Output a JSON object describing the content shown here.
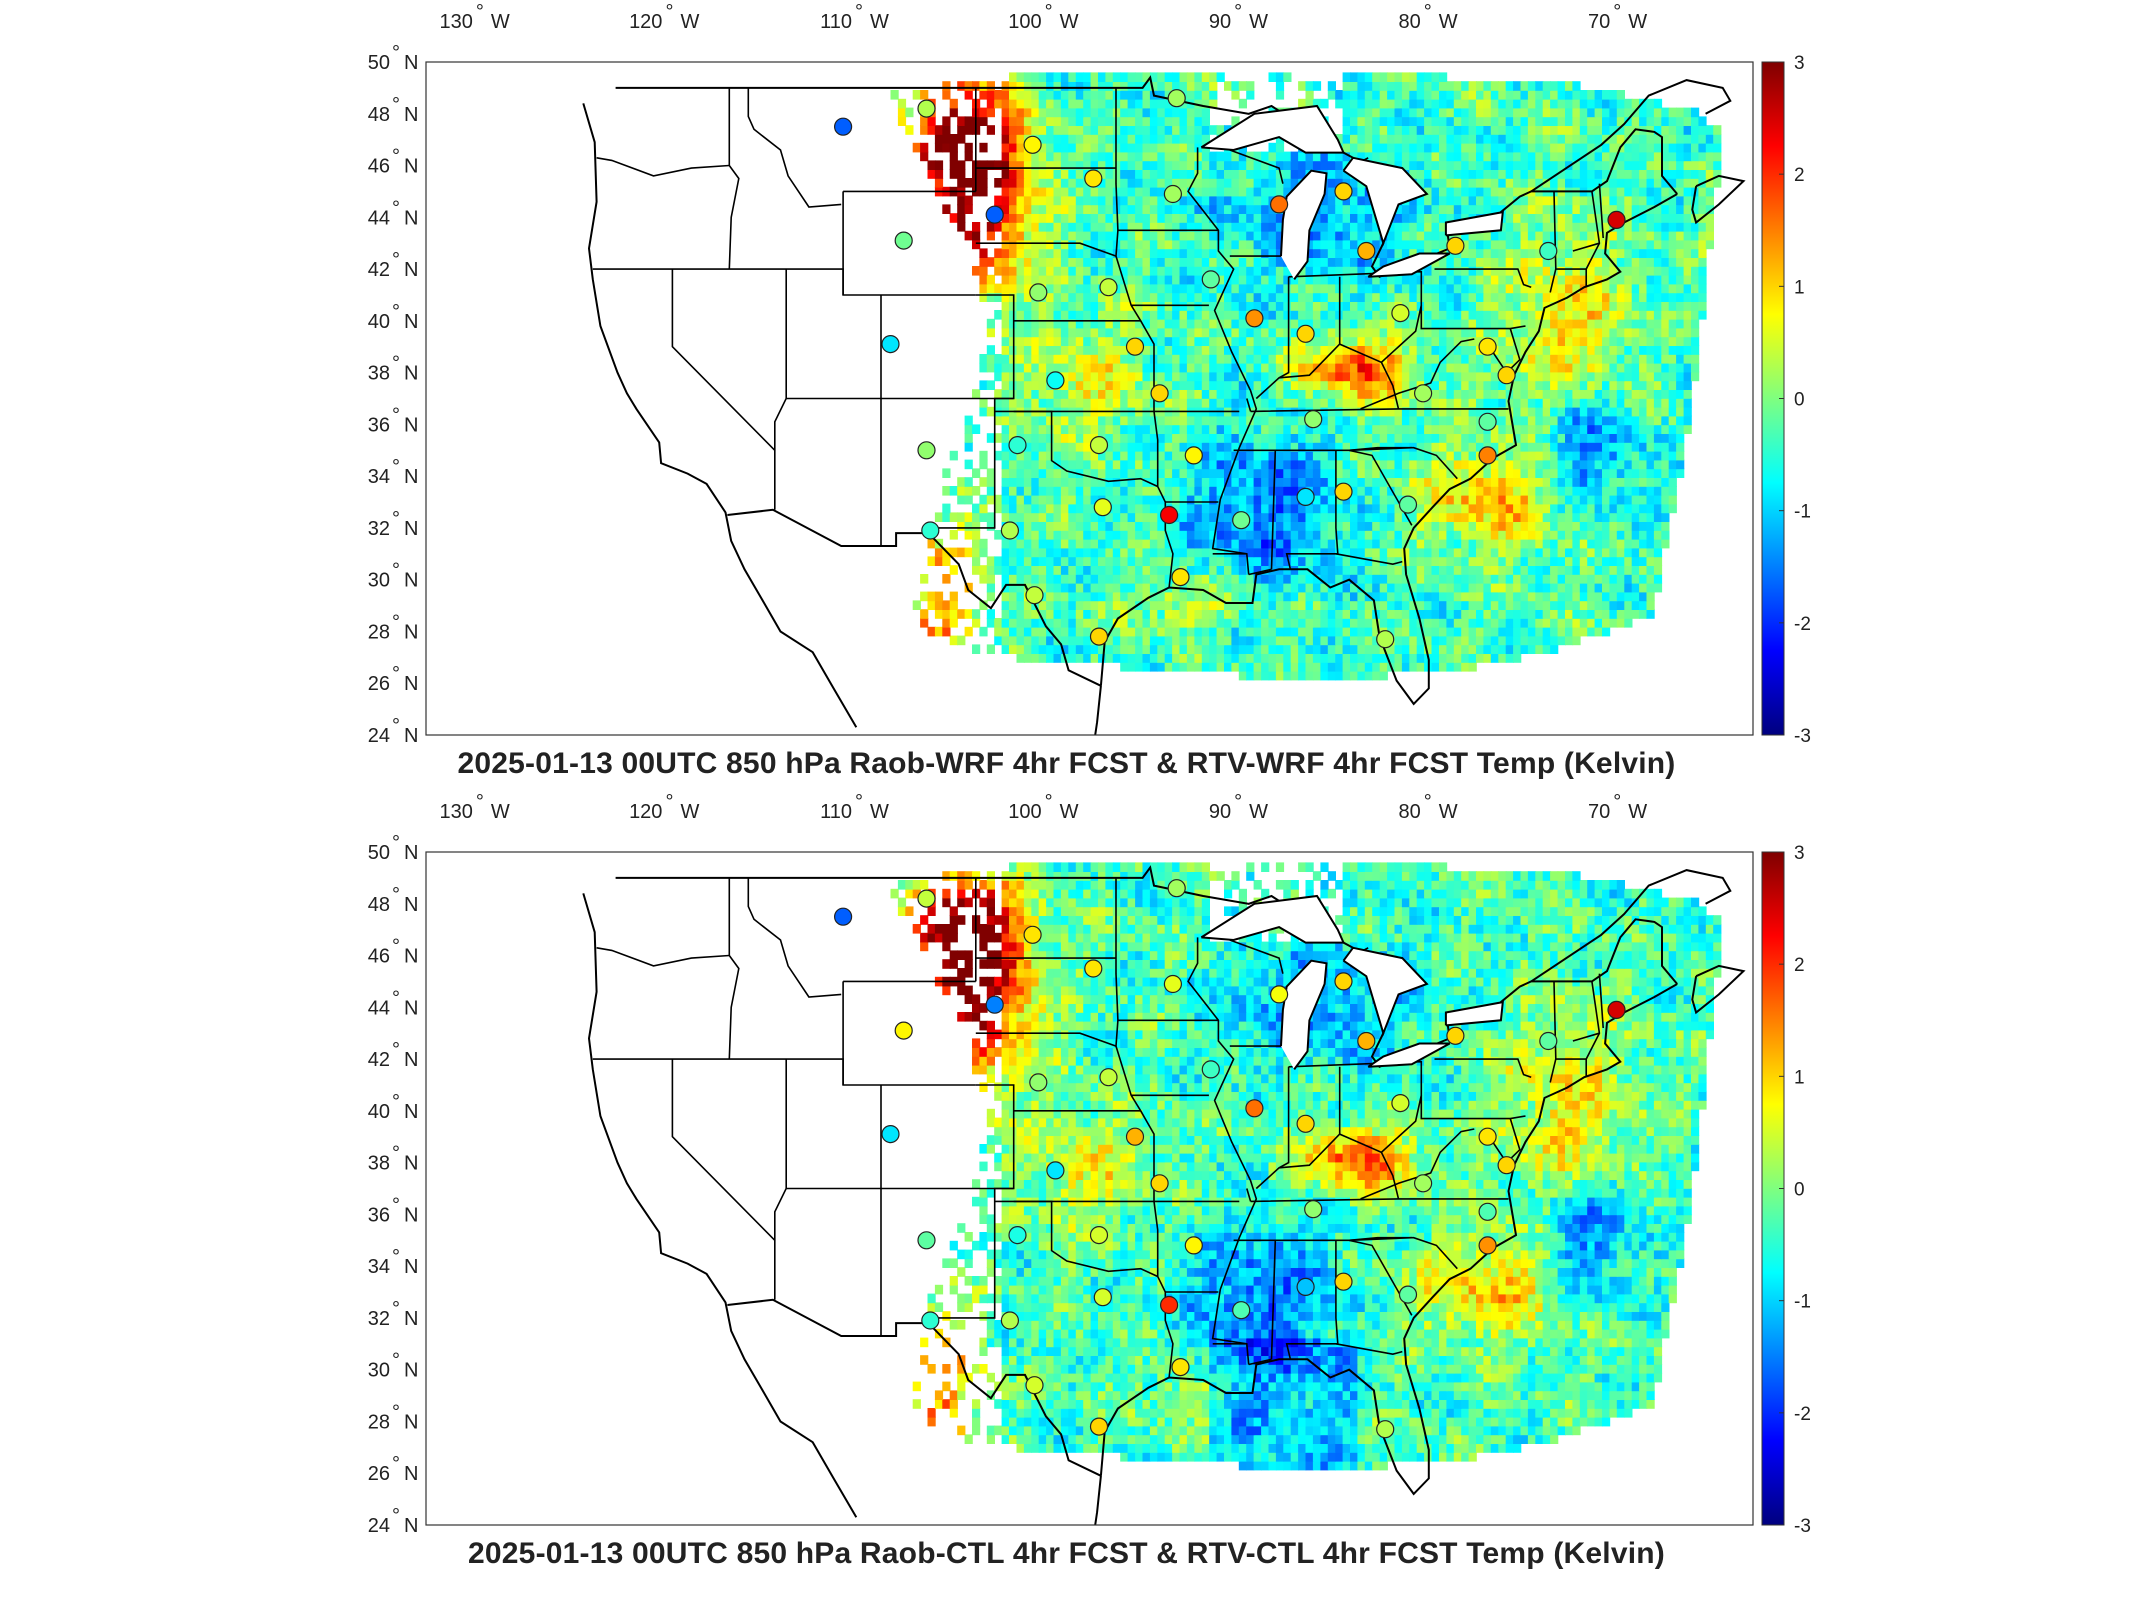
{
  "panels": [
    {
      "id": "wrf",
      "title": "2025-01-13 00UTC 850 hPa Raob-WRF 4hr FCST & RTV-WRF 4hr FCST Temp (Kelvin)",
      "seed": 17,
      "raobs": [
        {
          "lon": -111.0,
          "lat": 47.5,
          "value": -1.7
        },
        {
          "lon": -106.6,
          "lat": 48.2,
          "value": 0.3
        },
        {
          "lon": -103.0,
          "lat": 44.1,
          "value": -1.7
        },
        {
          "lon": -107.8,
          "lat": 43.1,
          "value": -0.1
        },
        {
          "lon": -101.0,
          "lat": 46.8,
          "value": 0.8
        },
        {
          "lon": -97.8,
          "lat": 45.5,
          "value": 0.9
        },
        {
          "lon": -93.4,
          "lat": 48.6,
          "value": 0.2
        },
        {
          "lon": -93.6,
          "lat": 44.9,
          "value": 0.2
        },
        {
          "lon": -88.0,
          "lat": 44.5,
          "value": 1.6
        },
        {
          "lon": -84.6,
          "lat": 45.0,
          "value": 1.0
        },
        {
          "lon": -83.4,
          "lat": 42.7,
          "value": 1.2
        },
        {
          "lon": -78.7,
          "lat": 42.9,
          "value": 1.0
        },
        {
          "lon": -73.8,
          "lat": 42.7,
          "value": -0.4
        },
        {
          "lon": -70.2,
          "lat": 43.9,
          "value": 2.5
        },
        {
          "lon": -108.5,
          "lat": 39.1,
          "value": -0.9
        },
        {
          "lon": -100.7,
          "lat": 41.1,
          "value": 0.1
        },
        {
          "lon": -97.0,
          "lat": 41.3,
          "value": 0.4
        },
        {
          "lon": -91.6,
          "lat": 41.6,
          "value": -0.2
        },
        {
          "lon": -89.3,
          "lat": 40.1,
          "value": 1.4
        },
        {
          "lon": -86.6,
          "lat": 39.5,
          "value": 1.0
        },
        {
          "lon": -81.6,
          "lat": 40.3,
          "value": 0.5
        },
        {
          "lon": -77.0,
          "lat": 39.0,
          "value": 0.9
        },
        {
          "lon": -76.0,
          "lat": 37.9,
          "value": 1.0
        },
        {
          "lon": -99.8,
          "lat": 37.7,
          "value": -0.7
        },
        {
          "lon": -95.6,
          "lat": 39.0,
          "value": 1.0
        },
        {
          "lon": -94.3,
          "lat": 37.2,
          "value": 1.0
        },
        {
          "lon": -86.2,
          "lat": 36.2,
          "value": 0.1
        },
        {
          "lon": -80.4,
          "lat": 37.2,
          "value": 0.2
        },
        {
          "lon": -77.0,
          "lat": 36.1,
          "value": -0.2
        },
        {
          "lon": -101.8,
          "lat": 35.2,
          "value": -0.5
        },
        {
          "lon": -97.5,
          "lat": 35.2,
          "value": 0.4
        },
        {
          "lon": -92.5,
          "lat": 34.8,
          "value": 0.8
        },
        {
          "lon": -77.0,
          "lat": 34.8,
          "value": 1.5
        },
        {
          "lon": -106.6,
          "lat": 35.0,
          "value": 0.1
        },
        {
          "lon": -106.4,
          "lat": 31.9,
          "value": -0.5
        },
        {
          "lon": -102.2,
          "lat": 31.9,
          "value": 0.3
        },
        {
          "lon": -97.3,
          "lat": 32.8,
          "value": 0.6
        },
        {
          "lon": -93.8,
          "lat": 32.5,
          "value": 2.3
        },
        {
          "lon": -90.0,
          "lat": 32.3,
          "value": -0.1
        },
        {
          "lon": -86.6,
          "lat": 33.2,
          "value": -0.9
        },
        {
          "lon": -84.6,
          "lat": 33.4,
          "value": 1.0
        },
        {
          "lon": -81.2,
          "lat": 32.9,
          "value": -0.2
        },
        {
          "lon": -100.9,
          "lat": 29.4,
          "value": 0.4
        },
        {
          "lon": -97.5,
          "lat": 27.8,
          "value": 1.0
        },
        {
          "lon": -93.2,
          "lat": 30.1,
          "value": 0.9
        },
        {
          "lon": -82.4,
          "lat": 27.7,
          "value": 0.3
        }
      ]
    },
    {
      "id": "ctl",
      "title": "2025-01-13 00UTC 850 hPa Raob-CTL 4hr FCST & RTV-CTL 4hr FCST Temp (Kelvin)",
      "seed": 29,
      "raobs": [
        {
          "lon": -111.0,
          "lat": 47.5,
          "value": -1.7
        },
        {
          "lon": -106.6,
          "lat": 48.2,
          "value": 0.4
        },
        {
          "lon": -103.0,
          "lat": 44.1,
          "value": -1.5
        },
        {
          "lon": -107.8,
          "lat": 43.1,
          "value": 0.8
        },
        {
          "lon": -101.0,
          "lat": 46.8,
          "value": 0.9
        },
        {
          "lon": -97.8,
          "lat": 45.5,
          "value": 0.9
        },
        {
          "lon": -93.4,
          "lat": 48.6,
          "value": 0.2
        },
        {
          "lon": -93.6,
          "lat": 44.9,
          "value": 0.6
        },
        {
          "lon": -88.0,
          "lat": 44.5,
          "value": 0.7
        },
        {
          "lon": -84.6,
          "lat": 45.0,
          "value": 1.0
        },
        {
          "lon": -83.4,
          "lat": 42.7,
          "value": 1.2
        },
        {
          "lon": -78.7,
          "lat": 42.9,
          "value": 1.0
        },
        {
          "lon": -73.8,
          "lat": 42.7,
          "value": -0.2
        },
        {
          "lon": -70.2,
          "lat": 43.9,
          "value": 2.5
        },
        {
          "lon": -108.5,
          "lat": 39.1,
          "value": -0.9
        },
        {
          "lon": -100.7,
          "lat": 41.1,
          "value": 0.1
        },
        {
          "lon": -97.0,
          "lat": 41.3,
          "value": 0.4
        },
        {
          "lon": -91.6,
          "lat": 41.6,
          "value": -0.4
        },
        {
          "lon": -89.3,
          "lat": 40.1,
          "value": 1.6
        },
        {
          "lon": -86.6,
          "lat": 39.5,
          "value": 1.0
        },
        {
          "lon": -81.6,
          "lat": 40.3,
          "value": 0.5
        },
        {
          "lon": -77.0,
          "lat": 39.0,
          "value": 0.9
        },
        {
          "lon": -76.0,
          "lat": 37.9,
          "value": 1.0
        },
        {
          "lon": -99.8,
          "lat": 37.7,
          "value": -0.9
        },
        {
          "lon": -95.6,
          "lat": 39.0,
          "value": 1.2
        },
        {
          "lon": -94.3,
          "lat": 37.2,
          "value": 1.0
        },
        {
          "lon": -86.2,
          "lat": 36.2,
          "value": 0.1
        },
        {
          "lon": -80.4,
          "lat": 37.2,
          "value": 0.2
        },
        {
          "lon": -77.0,
          "lat": 36.1,
          "value": -0.3
        },
        {
          "lon": -101.8,
          "lat": 35.2,
          "value": -0.6
        },
        {
          "lon": -97.5,
          "lat": 35.2,
          "value": 0.5
        },
        {
          "lon": -92.5,
          "lat": 34.8,
          "value": 0.8
        },
        {
          "lon": -77.0,
          "lat": 34.8,
          "value": 1.4
        },
        {
          "lon": -106.6,
          "lat": 35.0,
          "value": -0.2
        },
        {
          "lon": -106.4,
          "lat": 31.9,
          "value": -0.5
        },
        {
          "lon": -102.2,
          "lat": 31.9,
          "value": 0.3
        },
        {
          "lon": -97.3,
          "lat": 32.8,
          "value": 0.5
        },
        {
          "lon": -93.8,
          "lat": 32.5,
          "value": 2.0
        },
        {
          "lon": -90.0,
          "lat": 32.3,
          "value": -0.3
        },
        {
          "lon": -86.6,
          "lat": 33.2,
          "value": -1.1
        },
        {
          "lon": -84.6,
          "lat": 33.4,
          "value": 1.0
        },
        {
          "lon": -81.2,
          "lat": 32.9,
          "value": -0.2
        },
        {
          "lon": -100.9,
          "lat": 29.4,
          "value": 0.5
        },
        {
          "lon": -97.5,
          "lat": 27.8,
          "value": 1.0
        },
        {
          "lon": -93.2,
          "lat": 30.1,
          "value": 0.9
        },
        {
          "lon": -82.4,
          "lat": 27.7,
          "value": 0.3
        }
      ]
    }
  ],
  "map": {
    "lon_range": [
      -133,
      -63
    ],
    "lat_range": [
      24,
      50
    ],
    "lon_ticks": [
      {
        "lon": -130,
        "label": "130"
      },
      {
        "lon": -120,
        "label": "120"
      },
      {
        "lon": -110,
        "label": "110"
      },
      {
        "lon": -100,
        "label": "100"
      },
      {
        "lon": -90,
        "label": "90"
      },
      {
        "lon": -80,
        "label": "80"
      },
      {
        "lon": -70,
        "label": "70"
      }
    ],
    "lat_ticks": [
      {
        "lat": 24,
        "label": "24"
      },
      {
        "lat": 26,
        "label": "26"
      },
      {
        "lat": 28,
        "label": "28"
      },
      {
        "lat": 30,
        "label": "30"
      },
      {
        "lat": 32,
        "label": "32"
      },
      {
        "lat": 34,
        "label": "34"
      },
      {
        "lat": 36,
        "label": "36"
      },
      {
        "lat": 38,
        "label": "38"
      },
      {
        "lat": 40,
        "label": "40"
      },
      {
        "lat": 42,
        "label": "42"
      },
      {
        "lat": 44,
        "label": "44"
      },
      {
        "lat": 46,
        "label": "46"
      },
      {
        "lat": 48,
        "label": "48"
      },
      {
        "lat": 50,
        "label": "50"
      }
    ],
    "deg_symbol": "°",
    "west_suffix": "W",
    "north_suffix": "N"
  },
  "colorbar": {
    "range": [
      -3,
      3
    ],
    "tick_labels": [
      "3",
      "2",
      "1",
      "0",
      "-1",
      "-2",
      "-3"
    ],
    "colormap": "jet",
    "colors": [
      "#00007f",
      "#0000ff",
      "#007fff",
      "#00ffff",
      "#7fff7f",
      "#ffff00",
      "#ff7f00",
      "#ff0000",
      "#7f0000"
    ]
  }
}
